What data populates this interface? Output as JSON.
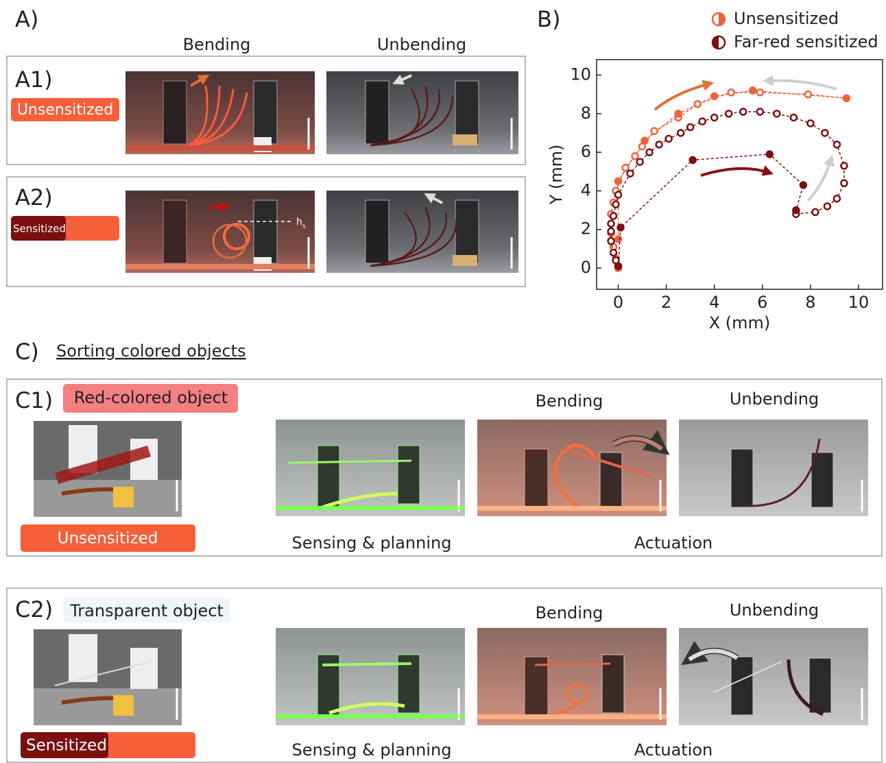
{
  "panel_a": {
    "label": "A)",
    "bending": "Bending",
    "unbending": "Unbending",
    "row1": {
      "label": "A1)",
      "tag": "Unsensitized"
    },
    "row2": {
      "label": "A2)",
      "tag": "Sensitized",
      "h": "h",
      "h_sub": "s"
    }
  },
  "panel_b_label": "B)",
  "chart_data": {
    "type": "scatter",
    "xlabel": "X (mm)",
    "ylabel": "Y (mm)",
    "xlim": [
      -0.9,
      11
    ],
    "ylim": [
      -1.1,
      10.8
    ],
    "xticks": [
      0,
      2,
      4,
      6,
      8,
      10
    ],
    "yticks": [
      0,
      2,
      4,
      6,
      8,
      10
    ],
    "series": [
      {
        "name": "Unsensitized",
        "color": "#f0603a",
        "x": [
          0,
          -0.1,
          -0.2,
          -0.3,
          -0.3,
          -0.2,
          -0.1,
          0.3,
          0.7,
          1.0,
          1.5,
          2.5,
          3.3,
          4.7,
          5.9,
          7.9,
          9.5,
          5.6,
          4.0,
          2.5,
          1.1,
          0,
          0
        ],
        "values": [
          0,
          0.5,
          1.1,
          1.8,
          2.8,
          3.4,
          4.0,
          5.2,
          5.8,
          6.3,
          7.1,
          7.8,
          8.5,
          9.1,
          9.1,
          9.0,
          8.8,
          9.2,
          8.9,
          8.0,
          6.6,
          4.5,
          1.5
        ],
        "filled": [
          false,
          false,
          false,
          false,
          false,
          false,
          false,
          false,
          false,
          false,
          false,
          false,
          false,
          false,
          false,
          false,
          true,
          true,
          true,
          true,
          true,
          true,
          true
        ]
      },
      {
        "name": "Far-red sensitized",
        "color": "#7a1010",
        "x": [
          0,
          -0.1,
          -0.2,
          -0.3,
          -0.3,
          -0.3,
          -0.2,
          -0.1,
          0,
          0.5,
          0.9,
          1.3,
          1.7,
          2.1,
          2.6,
          3.0,
          3.5,
          4.0,
          4.6,
          5.2,
          5.9,
          6.6,
          7.3,
          8.0,
          8.6,
          9.1,
          9.4,
          9.4,
          9.1,
          8.7,
          8.2,
          7.4,
          7.4,
          7.7,
          6.3,
          3.1,
          0.1,
          0
        ],
        "values": [
          0.1,
          0.4,
          0.8,
          1.4,
          1.9,
          2.3,
          2.7,
          3.3,
          3.8,
          4.9,
          5.5,
          6.0,
          6.4,
          6.7,
          7.0,
          7.3,
          7.6,
          7.8,
          8.0,
          8.1,
          8.1,
          8.0,
          7.8,
          7.5,
          7.0,
          6.4,
          5.3,
          4.4,
          3.6,
          3.2,
          2.9,
          2.8,
          3.0,
          4.3,
          5.9,
          5.6,
          2.1,
          0.1
        ],
        "filled": [
          false,
          false,
          false,
          false,
          false,
          false,
          false,
          false,
          false,
          false,
          false,
          false,
          false,
          false,
          false,
          false,
          false,
          false,
          false,
          false,
          false,
          false,
          false,
          false,
          false,
          false,
          false,
          false,
          false,
          false,
          false,
          false,
          true,
          true,
          true,
          true,
          true,
          true
        ]
      }
    ]
  },
  "panel_c": {
    "label": "C)",
    "title": "Sorting colored objects",
    "rows": [
      {
        "label": "C1)",
        "object": "Red-colored object",
        "tag": "Unsensitized",
        "bending": "Bending",
        "unbending": "Unbending",
        "sensing": "Sensing & planning",
        "actuation": "Actuation"
      },
      {
        "label": "C2)",
        "object": "Transparent object",
        "tag": "Sensitized",
        "bending": "Bending",
        "unbending": "Unbending",
        "sensing": "Sensing & planning",
        "actuation": "Actuation"
      }
    ]
  }
}
